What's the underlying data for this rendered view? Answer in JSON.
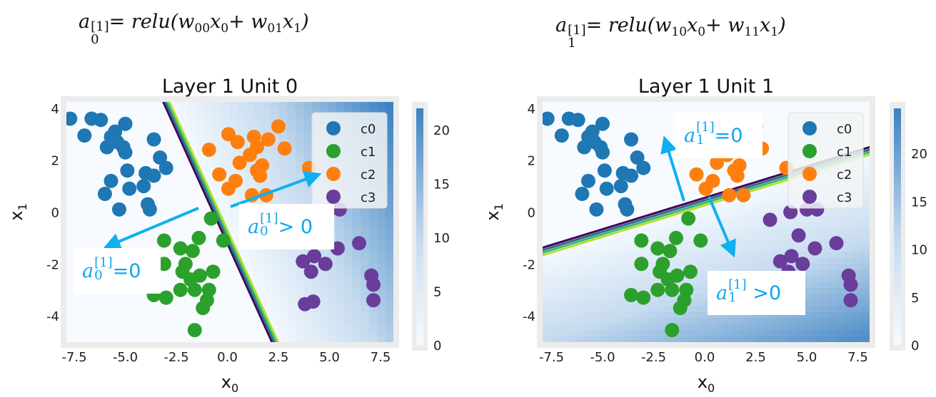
{
  "formulas": [
    {
      "parts": [
        {
          "text": "a",
          "sub": "0",
          "sup": "[1]"
        },
        {
          "text": " = relu(w",
          "sub": "00"
        },
        {
          "text": "x",
          "sub": "0"
        },
        {
          "text": " + w",
          "sub": "01"
        },
        {
          "text": "x",
          "sub": "1"
        },
        {
          "text": ")"
        }
      ]
    },
    {
      "parts": [
        {
          "text": "a",
          "sub": "1",
          "sup": "[1]"
        },
        {
          "text": " = relu(w",
          "sub": "10"
        },
        {
          "text": "x",
          "sub": "0"
        },
        {
          "text": " + w",
          "sub": "11"
        },
        {
          "text": "x",
          "sub": "1"
        },
        {
          "text": ")"
        }
      ]
    }
  ],
  "annotations": [
    {
      "base": "a",
      "sub": "0",
      "sup": "[1]",
      "rest": "=0"
    },
    {
      "base": "a",
      "sub": "0",
      "sup": "[1]",
      "rest": "> 0"
    },
    {
      "base": "a",
      "sub": "1",
      "sup": "[1]",
      "rest": "=0"
    },
    {
      "base": "a",
      "sub": "1",
      "sup": "[1]",
      "rest": " >0"
    }
  ],
  "colors": {
    "c0": "#1f77b4",
    "c1": "#2ca02c",
    "c2": "#ff7f0e",
    "c3": "#6a3d9a",
    "arrow": "#0fb0ef",
    "annotation_text": "#0fa4ef",
    "heat_low": "#f7fbff",
    "heat_high": "#3b82c2",
    "contour": [
      "#440154",
      "#31688e",
      "#35b779",
      "#b5de2b"
    ]
  },
  "chart_data": [
    {
      "type": "scatter",
      "title": "Layer 1 Unit 0",
      "xlabel": "x0",
      "ylabel": "x1",
      "xlim": [
        -7.9,
        8.1
      ],
      "ylim": [
        -5.1,
        4.2
      ],
      "xticks": [
        "-7.5",
        "-5.0",
        "-2.5",
        "0.0",
        "2.5",
        "5.0",
        "7.5"
      ],
      "yticks": [
        "4",
        "2",
        "0",
        "-2",
        "-4"
      ],
      "legend_position": "top-right",
      "legend": [
        "c0",
        "c1",
        "c2",
        "c3"
      ],
      "background": {
        "type": "heatmap",
        "colormap": "Blues",
        "relu_weights": {
          "w0": 2.0,
          "w1": 1.15,
          "b": 1.4
        },
        "colorbar_range": [
          0,
          22
        ],
        "colorbar_ticks": [
          "0",
          "5",
          "10",
          "15",
          "20"
        ]
      },
      "series": []
    },
    {
      "type": "scatter",
      "title": "Layer 1 Unit 1",
      "xlabel": "x0",
      "ylabel": "x1",
      "xlim": [
        -7.9,
        8.1
      ],
      "ylim": [
        -5.1,
        4.2
      ],
      "xticks": [
        "-7.5",
        "-5.0",
        "-2.5",
        "0.0",
        "2.5",
        "5.0",
        "7.5"
      ],
      "yticks": [
        "4",
        "2",
        "0",
        "-2",
        "-4"
      ],
      "legend_position": "top-right",
      "legend": [
        "c0",
        "c1",
        "c2",
        "c3"
      ],
      "background": {
        "type": "heatmap",
        "colormap": "Blues",
        "relu_weights": {
          "w0": 0.75,
          "w1": -3.1,
          "b": 1.7
        },
        "colorbar_range": [
          0,
          24.7
        ],
        "colorbar_ticks": [
          "0",
          "5",
          "10",
          "15",
          "20"
        ]
      },
      "series": []
    }
  ],
  "points": {
    "c0": [
      [
        -7.7,
        3.6
      ],
      [
        -6.65,
        3.6
      ],
      [
        -6.2,
        3.55
      ],
      [
        -5.0,
        3.4
      ],
      [
        -7.0,
        2.95
      ],
      [
        -5.5,
        3.1
      ],
      [
        -5.7,
        2.9
      ],
      [
        -5.4,
        2.7
      ],
      [
        -5.9,
        2.5
      ],
      [
        -5.1,
        2.5
      ],
      [
        -5.0,
        2.3
      ],
      [
        -3.6,
        2.8
      ],
      [
        -3.3,
        2.1
      ],
      [
        -3.0,
        1.7
      ],
      [
        -4.9,
        1.6
      ],
      [
        -5.7,
        1.2
      ],
      [
        -4.0,
        1.5
      ],
      [
        -3.6,
        1.4
      ],
      [
        -4.8,
        0.9
      ],
      [
        -4.1,
        1.0
      ],
      [
        -6.0,
        0.7
      ],
      [
        -5.3,
        0.1
      ],
      [
        -3.9,
        0.3
      ],
      [
        -3.8,
        0.1
      ]
    ],
    "c1": [
      [
        -0.8,
        -0.25
      ],
      [
        -0.2,
        -1.1
      ],
      [
        -3.1,
        -1.1
      ],
      [
        -1.4,
        -1.0
      ],
      [
        -2.3,
        -1.4
      ],
      [
        -1.7,
        -1.5
      ],
      [
        -3.1,
        -2.0
      ],
      [
        -2.05,
        -2.0
      ],
      [
        -2.2,
        -2.3
      ],
      [
        -1.35,
        -2.45
      ],
      [
        -0.7,
        -2.3
      ],
      [
        -1.8,
        -2.6
      ],
      [
        -2.3,
        -3.0
      ],
      [
        -3.6,
        -3.2
      ],
      [
        -3.0,
        -3.3
      ],
      [
        -1.6,
        -3.0
      ],
      [
        -0.9,
        -3.0
      ],
      [
        -1.0,
        -3.4
      ],
      [
        -1.2,
        -3.7
      ],
      [
        -1.6,
        -4.55
      ]
    ],
    "c2": [
      [
        2.5,
        3.3
      ],
      [
        0.05,
        3.0
      ],
      [
        0.5,
        2.7
      ],
      [
        1.3,
        2.9
      ],
      [
        2.0,
        2.8
      ],
      [
        1.45,
        2.5
      ],
      [
        2.8,
        2.45
      ],
      [
        -0.9,
        2.4
      ],
      [
        1.1,
        2.2
      ],
      [
        0.6,
        1.9
      ],
      [
        1.7,
        1.8
      ],
      [
        1.45,
        1.6
      ],
      [
        -0.4,
        1.45
      ],
      [
        0.4,
        1.2
      ],
      [
        0.05,
        0.9
      ],
      [
        1.6,
        1.4
      ],
      [
        1.2,
        0.65
      ],
      [
        1.9,
        0.65
      ],
      [
        4.0,
        1.7
      ]
    ],
    "c3": [
      [
        5.5,
        0.1
      ],
      [
        5.0,
        0.1
      ],
      [
        4.2,
        0.0
      ],
      [
        3.2,
        -0.3
      ],
      [
        4.6,
        -0.9
      ],
      [
        6.45,
        -1.2
      ],
      [
        5.4,
        -1.4
      ],
      [
        3.7,
        -1.9
      ],
      [
        4.25,
        -1.7
      ],
      [
        4.8,
        -2.0
      ],
      [
        4.1,
        -2.3
      ],
      [
        7.05,
        -2.45
      ],
      [
        7.15,
        -2.8
      ],
      [
        7.15,
        -3.4
      ],
      [
        3.8,
        -3.55
      ],
      [
        4.2,
        -3.45
      ]
    ]
  }
}
